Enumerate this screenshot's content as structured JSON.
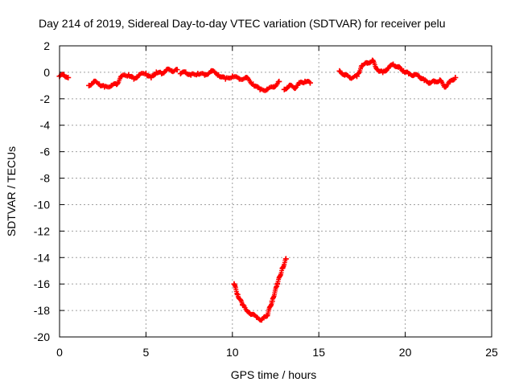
{
  "chart_data": {
    "type": "scatter",
    "title": "Day 214 of 2019, Sidereal Day-to-day VTEC variation (SDTVAR) for receiver pelu",
    "xlabel": "GPS time / hours",
    "ylabel": "SDTVAR / TECUs",
    "xlim": [
      0,
      25
    ],
    "ylim": [
      -20,
      2
    ],
    "x_ticks": [
      0,
      5,
      10,
      15,
      20,
      25
    ],
    "y_ticks": [
      2,
      0,
      -2,
      -4,
      -6,
      -8,
      -10,
      -12,
      -14,
      -16,
      -18,
      -20
    ],
    "grid": true,
    "marker": "plus",
    "series": [
      {
        "name": "SDTVAR",
        "color": "#ff0000",
        "segments": [
          {
            "x": [
              0.0,
              0.25,
              0.5
            ],
            "y": [
              -0.3,
              -0.2,
              -0.4
            ]
          },
          {
            "x": [
              1.7,
              2.0,
              2.3,
              2.6,
              3.0,
              3.3,
              3.6,
              4.0,
              4.3,
              4.6,
              5.0,
              5.3,
              5.6,
              5.9,
              6.2,
              6.5,
              6.8
            ],
            "y": [
              -1.0,
              -0.7,
              -0.9,
              -1.1,
              -1.0,
              -0.9,
              -0.3,
              -0.2,
              -0.5,
              -0.2,
              -0.1,
              -0.4,
              0.0,
              -0.1,
              0.2,
              0.1,
              0.2
            ]
          },
          {
            "x": [
              7.0,
              7.3,
              7.6,
              8.0,
              8.4,
              8.8,
              9.2,
              9.6,
              10.0,
              10.4,
              10.8,
              11.2,
              11.6,
              12.0,
              12.4,
              12.7
            ],
            "y": [
              -0.1,
              0.0,
              -0.2,
              -0.1,
              -0.2,
              0.1,
              -0.2,
              -0.5,
              -0.3,
              -0.5,
              -0.4,
              -0.9,
              -1.3,
              -1.3,
              -1.1,
              -0.7
            ]
          },
          {
            "x": [
              13.0,
              13.3,
              13.6,
              13.9,
              14.2,
              14.5
            ],
            "y": [
              -1.3,
              -1.0,
              -1.2,
              -0.8,
              -0.7,
              -0.8
            ]
          },
          {
            "x": [
              10.1,
              10.3,
              10.6,
              11.0,
              11.4,
              11.7,
              12.0,
              12.3,
              12.6,
              12.9,
              13.1
            ],
            "y": [
              -16.0,
              -16.8,
              -17.6,
              -18.2,
              -18.5,
              -18.7,
              -18.4,
              -17.3,
              -16.0,
              -14.8,
              -14.1
            ]
          },
          {
            "x": [
              16.2,
              16.5,
              16.8,
              17.2,
              17.5,
              17.8,
              18.1,
              18.4,
              18.7,
              19.0,
              19.3,
              19.6,
              19.9,
              20.2,
              20.5,
              20.8,
              21.1,
              21.4,
              21.7,
              22.0,
              22.3,
              22.6,
              22.9
            ],
            "y": [
              0.1,
              -0.2,
              -0.4,
              -0.3,
              0.5,
              0.7,
              0.9,
              0.2,
              0.0,
              0.3,
              0.6,
              0.4,
              0.1,
              -0.1,
              -0.2,
              -0.3,
              -0.6,
              -0.8,
              -0.7,
              -0.6,
              -1.1,
              -0.7,
              -0.4
            ]
          }
        ]
      }
    ]
  }
}
